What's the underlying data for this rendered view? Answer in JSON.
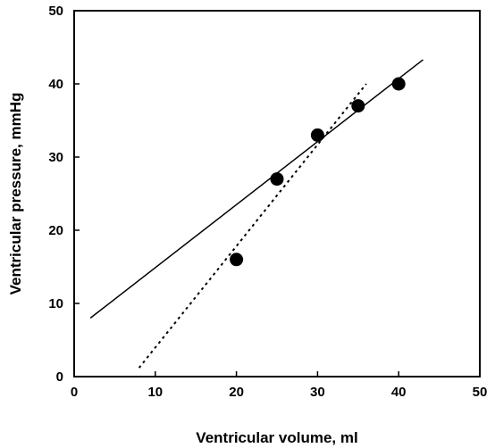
{
  "chart_data": {
    "type": "scatter",
    "xlabel": "Ventricular volume, ml",
    "ylabel": "Ventricular pressure, mmHg",
    "xlim": [
      0,
      50
    ],
    "ylim": [
      0,
      50
    ],
    "x_ticks": [
      0,
      10,
      20,
      30,
      40,
      50
    ],
    "y_ticks": [
      0,
      10,
      20,
      30,
      40,
      50
    ],
    "grid": false,
    "points": [
      {
        "x": 20,
        "y": 16
      },
      {
        "x": 25,
        "y": 27
      },
      {
        "x": 30,
        "y": 33
      },
      {
        "x": 35,
        "y": 37
      },
      {
        "x": 40,
        "y": 40
      }
    ],
    "fit_lines": [
      {
        "style": "solid",
        "from": [
          2,
          8
        ],
        "to": [
          43,
          43.3
        ]
      },
      {
        "style": "dotted",
        "from": [
          8,
          1.2
        ],
        "to": [
          36,
          40
        ]
      }
    ]
  }
}
